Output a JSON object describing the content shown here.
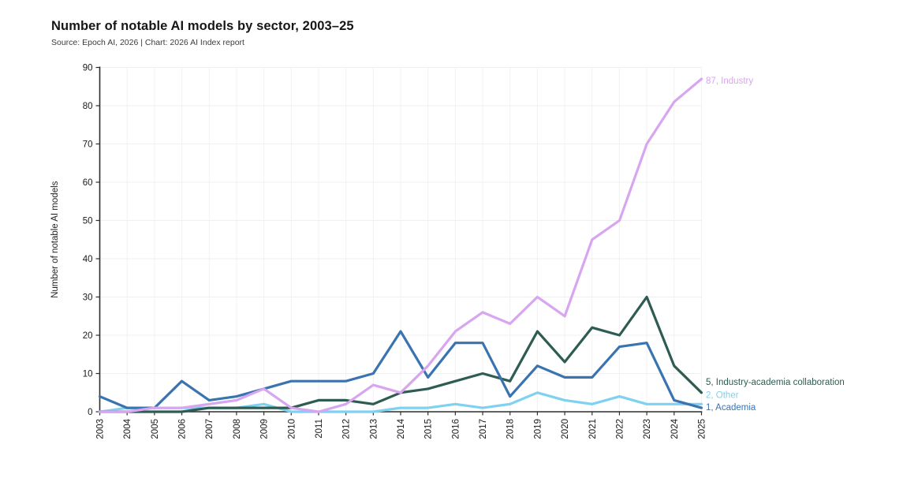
{
  "header": {
    "title": "Number of notable AI models by sector, 2003–25",
    "subtitle": "Source: Epoch AI, 2026 | Chart: 2026 AI Index report"
  },
  "chart_data": {
    "type": "line",
    "title": "Number of notable AI models by sector, 2003–25",
    "subtitle": "Source: Epoch AI, 2026 | Chart: 2026 AI Index report",
    "xlabel": "",
    "ylabel": "Number of notable AI models",
    "ylim": [
      0,
      90
    ],
    "ytick_step": 10,
    "grid": true,
    "legend_position": "right-end-labels",
    "x": [
      "2003",
      "2004",
      "2005",
      "2006",
      "2007",
      "2008",
      "2009",
      "2010",
      "2011",
      "2012",
      "2013",
      "2014",
      "2015",
      "2016",
      "2017",
      "2018",
      "2019",
      "2020",
      "2021",
      "2022",
      "2023",
      "2024",
      "2025"
    ],
    "series": [
      {
        "name": "Industry",
        "color": "#d8a5f0",
        "end_label": "87, Industry",
        "values": [
          0,
          0,
          1,
          1,
          2,
          3,
          6,
          1,
          0,
          2,
          7,
          5,
          12,
          21,
          26,
          23,
          30,
          25,
          45,
          50,
          70,
          81,
          87
        ]
      },
      {
        "name": "Industry-academia collaboration",
        "color": "#2e5c52",
        "end_label": "5, Industry-academia collaboration",
        "values": [
          0,
          0,
          0,
          0,
          1,
          1,
          1,
          1,
          3,
          3,
          2,
          5,
          6,
          8,
          10,
          8,
          21,
          13,
          22,
          20,
          30,
          12,
          5
        ]
      },
      {
        "name": "Other",
        "color": "#7fd1f1",
        "end_label": "2, Other",
        "values": [
          0,
          1,
          1,
          1,
          1,
          1,
          2,
          0,
          0,
          0,
          0,
          1,
          1,
          2,
          1,
          2,
          5,
          3,
          2,
          4,
          2,
          2,
          2
        ]
      },
      {
        "name": "Academia",
        "color": "#3a74b0",
        "end_label": "1, Academia",
        "values": [
          4,
          1,
          1,
          8,
          3,
          4,
          6,
          8,
          8,
          8,
          10,
          21,
          9,
          18,
          18,
          4,
          12,
          9,
          9,
          17,
          18,
          3,
          1
        ]
      }
    ],
    "axis_color": "#2e2e2e",
    "tick_label_color": "#1a1a1a",
    "gridline_color_h": "#efefef",
    "gridline_color_v": "#f2f2f2"
  }
}
